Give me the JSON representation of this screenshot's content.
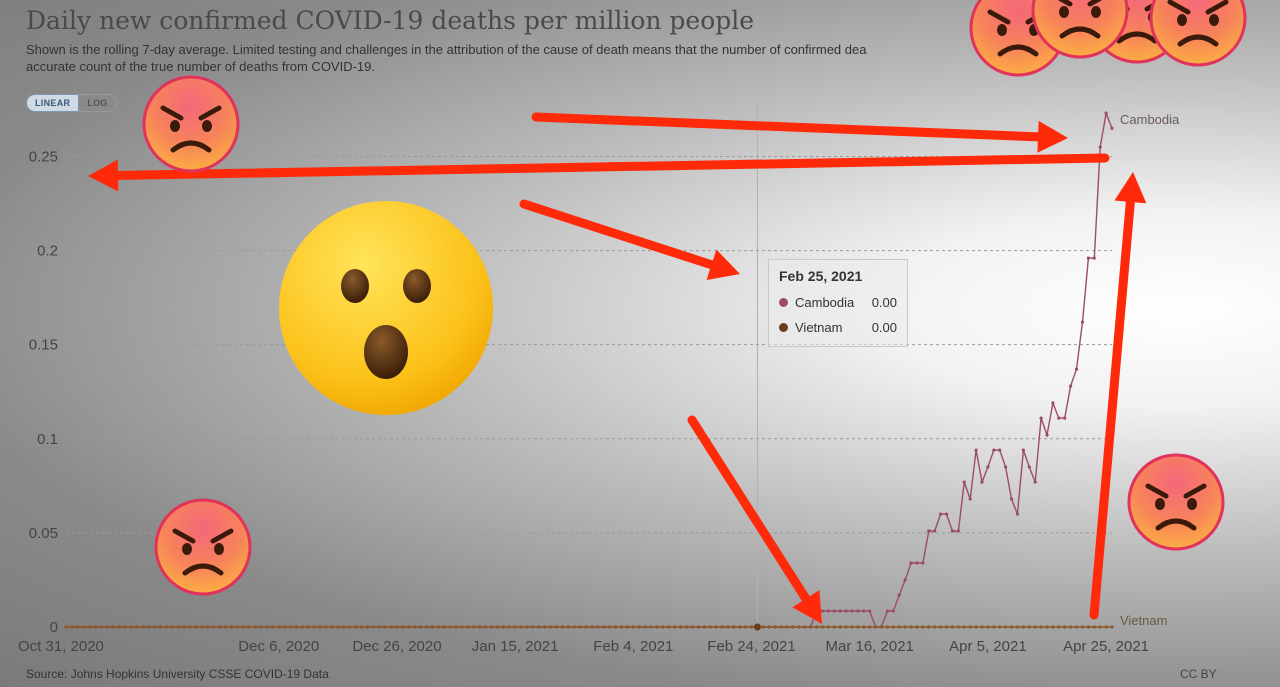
{
  "chart_data": {
    "type": "line",
    "title": "Daily new confirmed COVID-19 deaths per million people",
    "subtitle_line1": "Shown is the rolling 7-day average. Limited testing and challenges in the attribution of the cause of death means that the number of confirmed dea",
    "subtitle_line2": "accurate count of the true number of deaths from COVID-19.",
    "scale_toggle": {
      "linear": "LINEAR",
      "log": "LOG",
      "selected": "LINEAR"
    },
    "x_range": [
      "2020-10-31",
      "2021-04-26"
    ],
    "ylim": [
      0,
      0.28
    ],
    "y_ticks": [
      "0",
      "0.05",
      "0.1",
      "0.15",
      "0.2",
      "0.25"
    ],
    "x_ticks": [
      {
        "date": "2020-10-31",
        "label": "Oct 31, 2020"
      },
      {
        "date": "2020-12-06",
        "label": "Dec 6, 2020"
      },
      {
        "date": "2020-12-26",
        "label": "Dec 26, 2020"
      },
      {
        "date": "2021-01-15",
        "label": "Jan 15, 2021"
      },
      {
        "date": "2021-02-04",
        "label": "Feb 4, 2021"
      },
      {
        "date": "2021-02-24",
        "label": "Feb 24, 2021"
      },
      {
        "date": "2021-03-16",
        "label": "Mar 16, 2021"
      },
      {
        "date": "2021-04-05",
        "label": "Apr 5, 2021"
      },
      {
        "date": "2021-04-25",
        "label": "Apr 25, 2021"
      }
    ],
    "grid": true,
    "series": [
      {
        "name": "Cambodia",
        "color": "#9c4b6e",
        "points": [
          [
            "2020-10-31",
            0
          ],
          [
            "2021-03-06",
            0
          ],
          [
            "2021-03-07",
            0.0085
          ],
          [
            "2021-03-08",
            0.0085
          ],
          [
            "2021-03-15",
            0.0085
          ],
          [
            "2021-03-16",
            0.0085
          ],
          [
            "2021-03-17",
            0
          ],
          [
            "2021-03-18",
            0
          ],
          [
            "2021-03-19",
            0.0085
          ],
          [
            "2021-03-20",
            0.0085
          ],
          [
            "2021-03-21",
            0.017
          ],
          [
            "2021-03-22",
            0.025
          ],
          [
            "2021-03-23",
            0.034
          ],
          [
            "2021-03-24",
            0.034
          ],
          [
            "2021-03-25",
            0.034
          ],
          [
            "2021-03-26",
            0.051
          ],
          [
            "2021-03-27",
            0.051
          ],
          [
            "2021-03-28",
            0.06
          ],
          [
            "2021-03-29",
            0.06
          ],
          [
            "2021-03-30",
            0.051
          ],
          [
            "2021-03-31",
            0.051
          ],
          [
            "2021-04-01",
            0.077
          ],
          [
            "2021-04-02",
            0.068
          ],
          [
            "2021-04-03",
            0.094
          ],
          [
            "2021-04-04",
            0.077
          ],
          [
            "2021-04-05",
            0.085
          ],
          [
            "2021-04-06",
            0.094
          ],
          [
            "2021-04-07",
            0.094
          ],
          [
            "2021-04-08",
            0.085
          ],
          [
            "2021-04-09",
            0.068
          ],
          [
            "2021-04-10",
            0.06
          ],
          [
            "2021-04-11",
            0.094
          ],
          [
            "2021-04-12",
            0.085
          ],
          [
            "2021-04-13",
            0.077
          ],
          [
            "2021-04-14",
            0.111
          ],
          [
            "2021-04-15",
            0.102
          ],
          [
            "2021-04-16",
            0.119
          ],
          [
            "2021-04-17",
            0.111
          ],
          [
            "2021-04-18",
            0.111
          ],
          [
            "2021-04-19",
            0.128
          ],
          [
            "2021-04-20",
            0.137
          ],
          [
            "2021-04-21",
            0.162
          ],
          [
            "2021-04-22",
            0.196
          ],
          [
            "2021-04-23",
            0.196
          ],
          [
            "2021-04-24",
            0.255
          ],
          [
            "2021-04-25",
            0.273
          ],
          [
            "2021-04-26",
            0.265
          ]
        ]
      },
      {
        "name": "Vietnam",
        "color": "#8a5a2a",
        "points": [
          [
            "2020-10-31",
            0
          ],
          [
            "2021-04-26",
            0
          ]
        ]
      }
    ],
    "series_label_colors": {
      "Cambodia": "#6a5a66",
      "Vietnam": "#6a5a44"
    },
    "tooltip": {
      "date": "Feb 25, 2021",
      "rows": [
        {
          "name": "Cambodia",
          "value": "0.00",
          "color": "#9c4b6e"
        },
        {
          "name": "Vietnam",
          "value": "0.00",
          "color": "#6b3b1e"
        }
      ]
    },
    "source": "Source: Johns Hopkins University CSSE COVID-19 Data",
    "license": "CC BY"
  },
  "overlay": {
    "arrow_color": "#ff2a0a",
    "emojis": [
      "angry-face",
      "angry-face",
      "angry-face",
      "angry-face",
      "angry-face",
      "angry-face",
      "angry-face",
      "astonished-face"
    ]
  }
}
